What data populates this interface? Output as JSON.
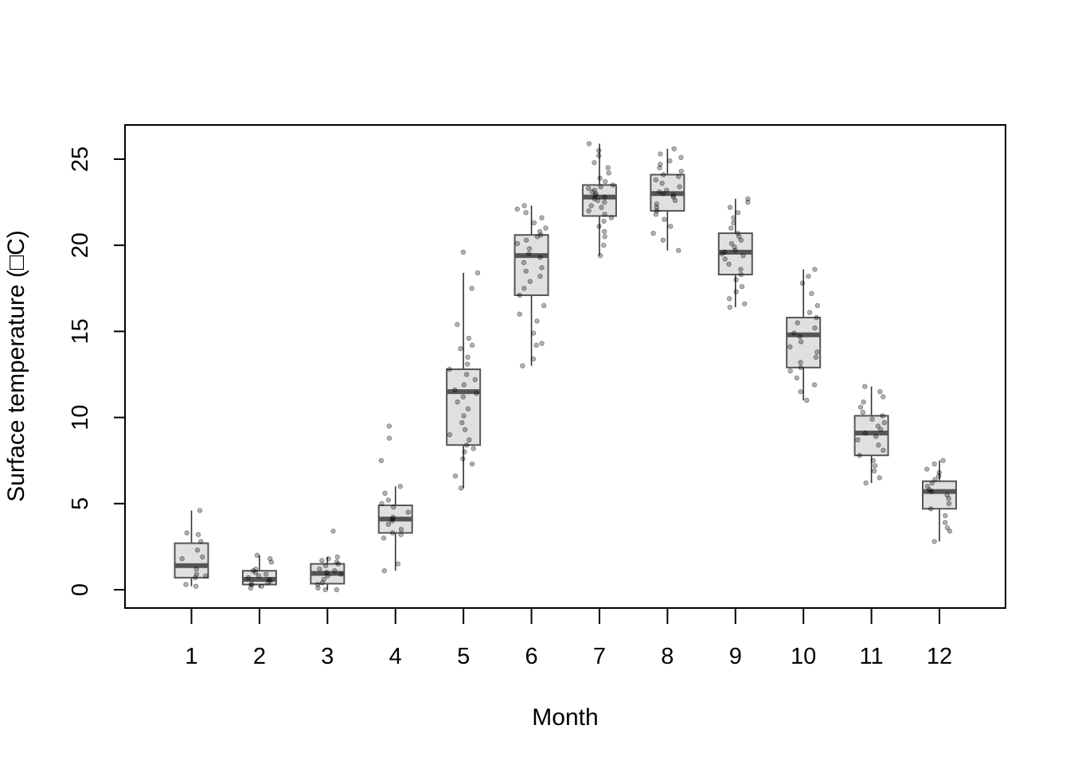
{
  "chart_data": {
    "type": "box",
    "xlabel": "Month",
    "ylabel": "Surface temperature (□C)",
    "ylim": [
      -1,
      27
    ],
    "categories": [
      "1",
      "2",
      "3",
      "4",
      "5",
      "6",
      "7",
      "8",
      "9",
      "10",
      "11",
      "12"
    ],
    "yticks": [
      0,
      5,
      10,
      15,
      20,
      25
    ],
    "grid": false,
    "legend": "none",
    "colors": {
      "box_fill": "#e0e0e0",
      "box_stroke": "#555555",
      "median": "#555555",
      "point": "#000000",
      "point_alpha": 0.3
    },
    "boxes": [
      {
        "month": "1",
        "min": 0.2,
        "q1": 0.7,
        "median": 1.4,
        "q3": 2.7,
        "max": 4.6,
        "outliers": []
      },
      {
        "month": "2",
        "min": 0.1,
        "q1": 0.3,
        "median": 0.6,
        "q3": 1.1,
        "max": 2.0,
        "outliers": []
      },
      {
        "month": "3",
        "min": 0.0,
        "q1": 0.35,
        "median": 0.95,
        "q3": 1.5,
        "max": 1.9,
        "outliers": [
          3.4
        ]
      },
      {
        "month": "4",
        "min": 1.1,
        "q1": 3.3,
        "median": 4.1,
        "q3": 4.9,
        "max": 6.0,
        "outliers": [
          7.5,
          8.8,
          9.5
        ]
      },
      {
        "month": "5",
        "min": 5.9,
        "q1": 8.4,
        "median": 11.5,
        "q3": 12.8,
        "max": 18.4,
        "outliers": [
          19.6
        ]
      },
      {
        "month": "6",
        "min": 13.0,
        "q1": 17.1,
        "median": 19.4,
        "q3": 20.6,
        "max": 22.3,
        "outliers": []
      },
      {
        "month": "7",
        "min": 19.4,
        "q1": 21.7,
        "median": 22.8,
        "q3": 23.5,
        "max": 25.9,
        "outliers": []
      },
      {
        "month": "8",
        "min": 19.7,
        "q1": 22.0,
        "median": 23.0,
        "q3": 24.1,
        "max": 25.6,
        "outliers": []
      },
      {
        "month": "9",
        "min": 16.4,
        "q1": 18.3,
        "median": 19.6,
        "q3": 20.7,
        "max": 22.7,
        "outliers": []
      },
      {
        "month": "10",
        "min": 11.0,
        "q1": 12.9,
        "median": 14.8,
        "q3": 15.8,
        "max": 18.6,
        "outliers": []
      },
      {
        "month": "11",
        "min": 6.2,
        "q1": 7.8,
        "median": 9.1,
        "q3": 10.1,
        "max": 11.8,
        "outliers": []
      },
      {
        "month": "12",
        "min": 2.8,
        "q1": 4.7,
        "median": 5.7,
        "q3": 6.3,
        "max": 7.5,
        "outliers": []
      }
    ],
    "points": [
      {
        "month": "1",
        "values": [
          0.2,
          0.3,
          0.7,
          0.8,
          0.9,
          1.2,
          1.8,
          1.9,
          2.3,
          2.8,
          3.2,
          3.3,
          4.6
        ]
      },
      {
        "month": "2",
        "values": [
          0.1,
          0.2,
          0.3,
          0.3,
          0.4,
          0.5,
          0.6,
          0.7,
          0.8,
          0.9,
          1.0,
          1.1,
          1.2,
          1.6,
          1.8,
          2.0
        ]
      },
      {
        "month": "3",
        "values": [
          0.0,
          0.0,
          0.1,
          0.3,
          0.4,
          0.6,
          0.8,
          0.9,
          1.0,
          1.1,
          1.2,
          1.4,
          1.5,
          1.6,
          1.7,
          1.8,
          1.9,
          3.4
        ]
      },
      {
        "month": "4",
        "values": [
          1.1,
          1.5,
          3.0,
          3.2,
          3.3,
          3.5,
          3.8,
          4.0,
          4.1,
          4.2,
          4.5,
          4.8,
          5.0,
          5.2,
          5.6,
          6.0,
          7.5,
          8.8,
          9.5
        ]
      },
      {
        "month": "5",
        "values": [
          5.9,
          6.6,
          7.3,
          7.6,
          8.0,
          8.2,
          8.4,
          8.7,
          9.0,
          9.3,
          9.7,
          10.1,
          10.5,
          10.9,
          11.2,
          11.4,
          11.6,
          11.9,
          12.2,
          12.5,
          12.8,
          13.1,
          13.5,
          14.0,
          14.2,
          14.6,
          15.4,
          17.5,
          18.4,
          19.6
        ]
      },
      {
        "month": "6",
        "values": [
          13.0,
          13.4,
          14.2,
          14.3,
          14.9,
          15.6,
          16.0,
          16.5,
          17.1,
          17.5,
          17.9,
          18.2,
          18.5,
          18.7,
          19.0,
          19.3,
          19.5,
          19.8,
          20.1,
          20.3,
          20.5,
          20.6,
          20.8,
          21.0,
          21.3,
          21.6,
          21.9,
          22.1,
          22.3
        ]
      },
      {
        "month": "7",
        "values": [
          19.4,
          20.0,
          20.5,
          20.8,
          21.1,
          21.4,
          21.6,
          21.8,
          22.0,
          22.2,
          22.3,
          22.5,
          22.6,
          22.7,
          22.8,
          22.9,
          23.0,
          23.1,
          23.2,
          23.3,
          23.4,
          23.5,
          23.7,
          23.9,
          24.2,
          24.5,
          24.8,
          25.2,
          25.5,
          25.9
        ]
      },
      {
        "month": "8",
        "values": [
          19.7,
          20.3,
          20.7,
          21.1,
          21.5,
          21.8,
          22.0,
          22.2,
          22.4,
          22.6,
          22.8,
          22.9,
          23.0,
          23.1,
          23.2,
          23.4,
          23.6,
          23.8,
          24.0,
          24.1,
          24.3,
          24.5,
          24.7,
          24.9,
          25.1,
          25.3,
          25.6
        ]
      },
      {
        "month": "9",
        "values": [
          16.4,
          16.6,
          16.9,
          17.3,
          17.6,
          18.0,
          18.3,
          18.6,
          18.9,
          19.2,
          19.4,
          19.5,
          19.6,
          19.7,
          19.9,
          20.1,
          20.3,
          20.5,
          20.7,
          21.0,
          21.3,
          21.6,
          21.9,
          22.2,
          22.5,
          22.7
        ]
      },
      {
        "month": "10",
        "values": [
          11.0,
          11.5,
          11.9,
          12.3,
          12.7,
          12.9,
          13.2,
          13.5,
          13.8,
          14.1,
          14.4,
          14.7,
          14.9,
          15.2,
          15.5,
          15.8,
          16.1,
          16.5,
          17.2,
          17.8,
          18.2,
          18.6
        ]
      },
      {
        "month": "11",
        "values": [
          6.2,
          6.5,
          6.9,
          7.2,
          7.5,
          7.8,
          8.1,
          8.4,
          8.7,
          8.9,
          9.1,
          9.3,
          9.5,
          9.7,
          9.9,
          10.1,
          10.3,
          10.6,
          10.9,
          11.2,
          11.5,
          11.8
        ]
      },
      {
        "month": "12",
        "values": [
          2.8,
          3.4,
          3.6,
          3.9,
          4.3,
          4.7,
          5.0,
          5.3,
          5.5,
          5.7,
          5.8,
          6.0,
          6.2,
          6.4,
          6.6,
          6.8,
          7.0,
          7.3,
          7.5
        ]
      }
    ]
  }
}
